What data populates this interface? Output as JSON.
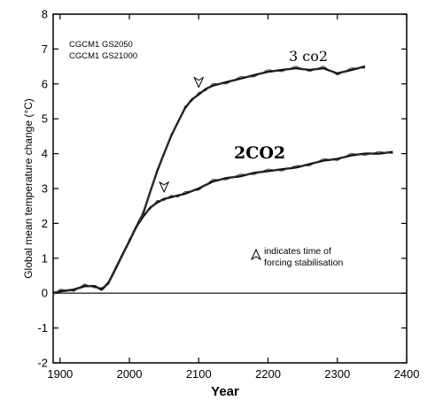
{
  "chart_data": {
    "type": "line",
    "xlabel": "Year",
    "ylabel": "Global mean temperature change (°C)",
    "xlim": [
      1890,
      2400
    ],
    "ylim": [
      -2,
      8
    ],
    "xticks": [
      1900,
      2000,
      2100,
      2200,
      2300,
      2400
    ],
    "yticks": [
      -2,
      -1,
      0,
      1,
      2,
      3,
      4,
      5,
      6,
      7,
      8
    ],
    "grid": false,
    "legend_entries": [
      "CGCM1 GS2050",
      "CGCM1 GS21000"
    ],
    "legend_position": "top-left",
    "series": [
      {
        "name": "3 CO2",
        "label": "3 co2",
        "x": [
          1890,
          1900,
          1920,
          1935,
          1950,
          1960,
          1970,
          1980,
          1990,
          2000,
          2010,
          2020,
          2030,
          2040,
          2050,
          2060,
          2070,
          2080,
          2090,
          2100,
          2110,
          2120,
          2140,
          2160,
          2180,
          2200,
          2220,
          2240,
          2260,
          2280,
          2300,
          2320,
          2340
        ],
        "y": [
          0.0,
          0.05,
          0.1,
          0.2,
          0.2,
          0.1,
          0.3,
          0.7,
          1.1,
          1.5,
          1.9,
          2.3,
          2.9,
          3.5,
          4.0,
          4.5,
          4.9,
          5.3,
          5.55,
          5.7,
          5.85,
          5.95,
          6.05,
          6.15,
          6.25,
          6.35,
          6.4,
          6.45,
          6.4,
          6.45,
          6.3,
          6.4,
          6.5
        ]
      },
      {
        "name": "2 CO2",
        "label": "2CO2",
        "x": [
          1890,
          1900,
          1920,
          1935,
          1950,
          1960,
          1970,
          1980,
          1990,
          2000,
          2010,
          2020,
          2030,
          2040,
          2050,
          2060,
          2070,
          2080,
          2100,
          2120,
          2140,
          2160,
          2180,
          2200,
          2220,
          2240,
          2260,
          2280,
          2300,
          2320,
          2340,
          2360,
          2380
        ],
        "y": [
          0.0,
          0.05,
          0.1,
          0.2,
          0.2,
          0.1,
          0.3,
          0.7,
          1.1,
          1.5,
          1.9,
          2.2,
          2.45,
          2.6,
          2.7,
          2.75,
          2.8,
          2.85,
          3.0,
          3.2,
          3.3,
          3.35,
          3.45,
          3.5,
          3.55,
          3.6,
          3.7,
          3.8,
          3.85,
          3.95,
          4.0,
          4.0,
          4.05
        ]
      }
    ],
    "stabilisation_markers": [
      {
        "series": "2 CO2",
        "x": 2050,
        "y": 2.7
      },
      {
        "series": "3 CO2",
        "x": 2100,
        "y": 5.7
      }
    ],
    "annotation": [
      "indicates time of",
      "forcing stabilisation"
    ]
  }
}
